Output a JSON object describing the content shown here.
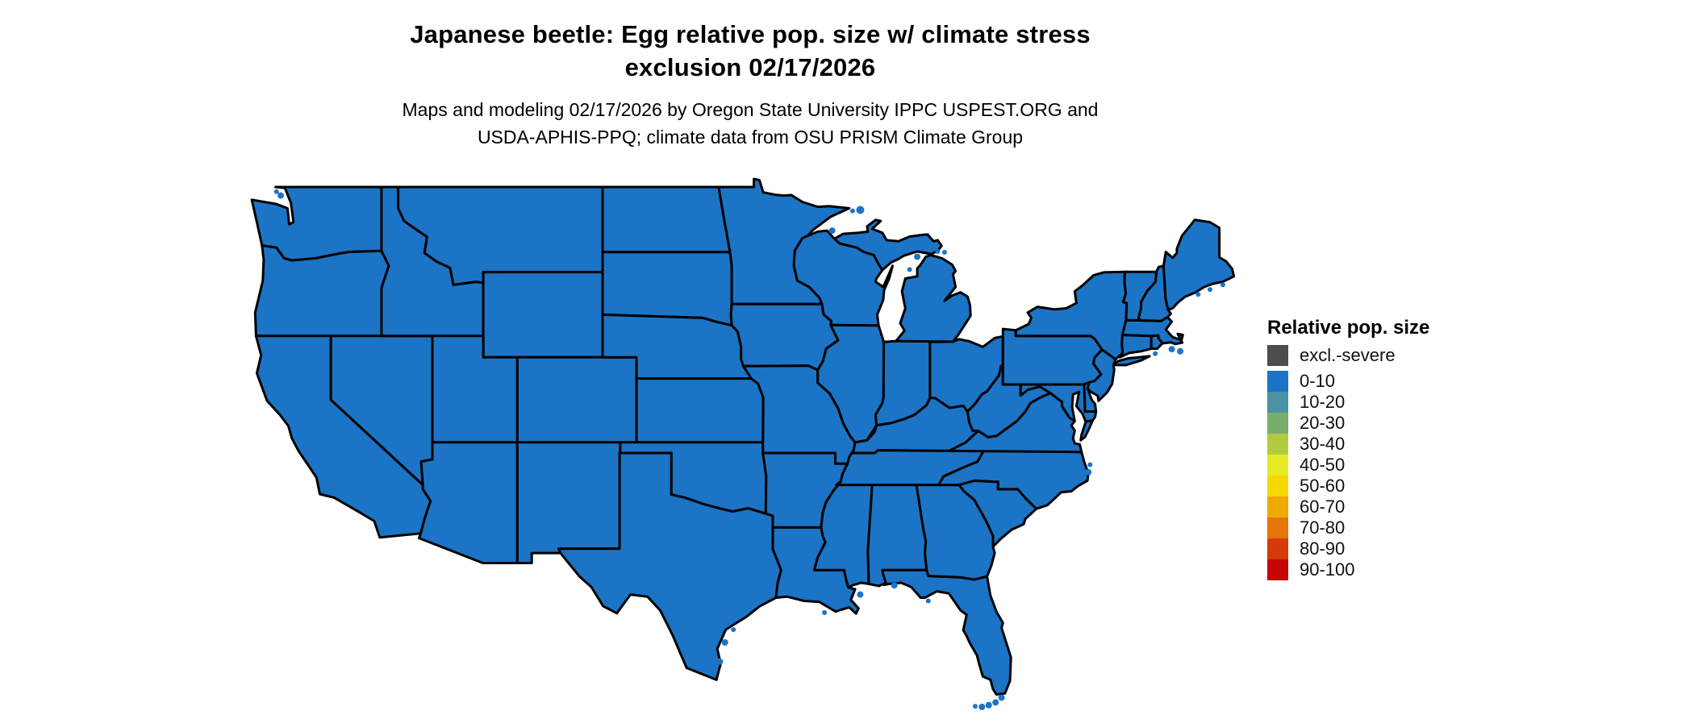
{
  "title": {
    "line1": "Japanese beetle: Egg relative pop. size w/ climate stress",
    "line2": "exclusion 02/17/2026"
  },
  "subtitle": {
    "line1": "Maps and modeling 02/17/2026 by Oregon State University IPPC USPEST.ORG and",
    "line2": "USDA-APHIS-PPQ; climate data from OSU PRISM Climate Group"
  },
  "legend": {
    "title": "Relative pop. size",
    "items": [
      {
        "label": "excl.-severe",
        "color": "#4D4D4F",
        "gap_after": true
      },
      {
        "label": "0-10",
        "color": "#1B74C5"
      },
      {
        "label": "10-20",
        "color": "#4A93A2"
      },
      {
        "label": "20-30",
        "color": "#77AE6C"
      },
      {
        "label": "30-40",
        "color": "#B2CC42"
      },
      {
        "label": "40-50",
        "color": "#E8EA25"
      },
      {
        "label": "50-60",
        "color": "#F6D800"
      },
      {
        "label": "60-70",
        "color": "#EFA900"
      },
      {
        "label": "70-80",
        "color": "#E57509"
      },
      {
        "label": "80-90",
        "color": "#D43B06"
      },
      {
        "label": "90-100",
        "color": "#C40606"
      }
    ]
  },
  "map": {
    "region_fill": "#1B74C5",
    "border_color": "#000000",
    "background": "#FFFFFF"
  },
  "chart_data": {
    "type": "choropleth_map",
    "region": "Contiguous United States (state boundaries shown)",
    "legend_title": "Relative pop. size",
    "classes": [
      "excl.-severe",
      "0-10",
      "10-20",
      "20-30",
      "30-40",
      "40-50",
      "50-60",
      "60-70",
      "70-80",
      "80-90",
      "90-100"
    ],
    "class_colors": [
      "#4D4D4F",
      "#1B74C5",
      "#4A93A2",
      "#77AE6C",
      "#B2CC42",
      "#E8EA25",
      "#F6D800",
      "#EFA900",
      "#E57509",
      "#D43B06",
      "#C40606"
    ],
    "depicted_values": "Entire mapped area (all contiguous US states) falls in the 0-10 relative population size class (uniform blue fill)",
    "legend_position": "right"
  }
}
